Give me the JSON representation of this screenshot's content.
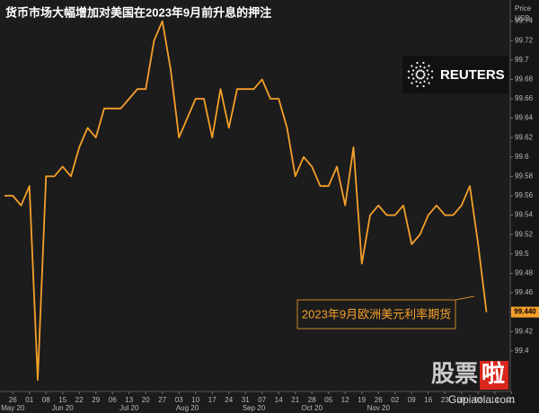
{
  "chart_data": {
    "type": "line",
    "title": "货币市场大幅增加对美国在2023年9月前升息的押注",
    "y_axis_label": [
      "Price",
      "USD"
    ],
    "categories": [
      null,
      "26",
      null,
      "01",
      null,
      "08",
      null,
      "15",
      null,
      "22",
      null,
      "29",
      null,
      "06",
      null,
      "13",
      null,
      "20",
      null,
      "27",
      null,
      "03",
      null,
      "10",
      null,
      "17",
      null,
      "24",
      null,
      "31",
      null,
      "07",
      null,
      "14",
      null,
      "21",
      null,
      "28",
      null,
      "05",
      null,
      "12",
      null,
      "19",
      null,
      "26",
      null,
      "02",
      null,
      "09",
      null,
      "16",
      null,
      "23",
      null,
      "30",
      null,
      "07",
      null,
      "14",
      null,
      "21"
    ],
    "months": [
      null,
      "May 20",
      null,
      null,
      null,
      null,
      null,
      "Jun 20",
      null,
      null,
      null,
      null,
      null,
      null,
      null,
      "Jul 20",
      null,
      null,
      null,
      null,
      null,
      null,
      "Aug 20",
      null,
      null,
      null,
      null,
      null,
      null,
      null,
      "Sep 20",
      null,
      null,
      null,
      null,
      null,
      null,
      "Oct 20",
      null,
      null,
      null,
      null,
      null,
      null,
      null,
      "Nov 20",
      null,
      null,
      null,
      null,
      null,
      null,
      null,
      null,
      null,
      null,
      null,
      null,
      null,
      null,
      null,
      null
    ],
    "series": [
      {
        "name": "2023年9月欧洲美元利率期货",
        "color": "#f5a02a",
        "values": [
          99.56,
          99.56,
          99.55,
          99.57,
          99.37,
          99.58,
          99.58,
          99.59,
          99.58,
          99.61,
          99.63,
          99.62,
          99.65,
          99.65,
          99.65,
          99.66,
          99.67,
          99.67,
          99.72,
          99.74,
          99.69,
          99.62,
          99.64,
          99.66,
          99.66,
          99.62,
          99.67,
          99.63,
          99.67,
          99.67,
          99.67,
          99.68,
          99.66,
          99.66,
          99.63,
          99.58,
          99.6,
          99.59,
          99.57,
          99.57,
          99.59,
          99.55,
          99.61,
          99.49,
          99.54,
          99.55,
          99.54,
          99.54,
          99.55,
          99.51,
          99.52,
          99.54,
          99.55,
          99.54,
          99.54,
          99.55,
          99.57,
          99.51,
          99.44,
          null,
          null,
          null
        ]
      }
    ],
    "ylim": [
      99.36,
      99.76
    ],
    "yticks": [
      99.4,
      99.42,
      99.44,
      99.46,
      99.48,
      99.5,
      99.52,
      99.54,
      99.56,
      99.58,
      99.6,
      99.62,
      99.64,
      99.66,
      99.68,
      99.7,
      99.72,
      99.74
    ],
    "grid": false,
    "price_marker": {
      "value": 99.44,
      "label": "99.440"
    },
    "annotation": "2023年9月欧洲美元利率期货",
    "logo": "REUTERS",
    "watermark": {
      "brand_main": "股票",
      "brand_end": "啦",
      "url": "Gupiaola.com"
    }
  }
}
